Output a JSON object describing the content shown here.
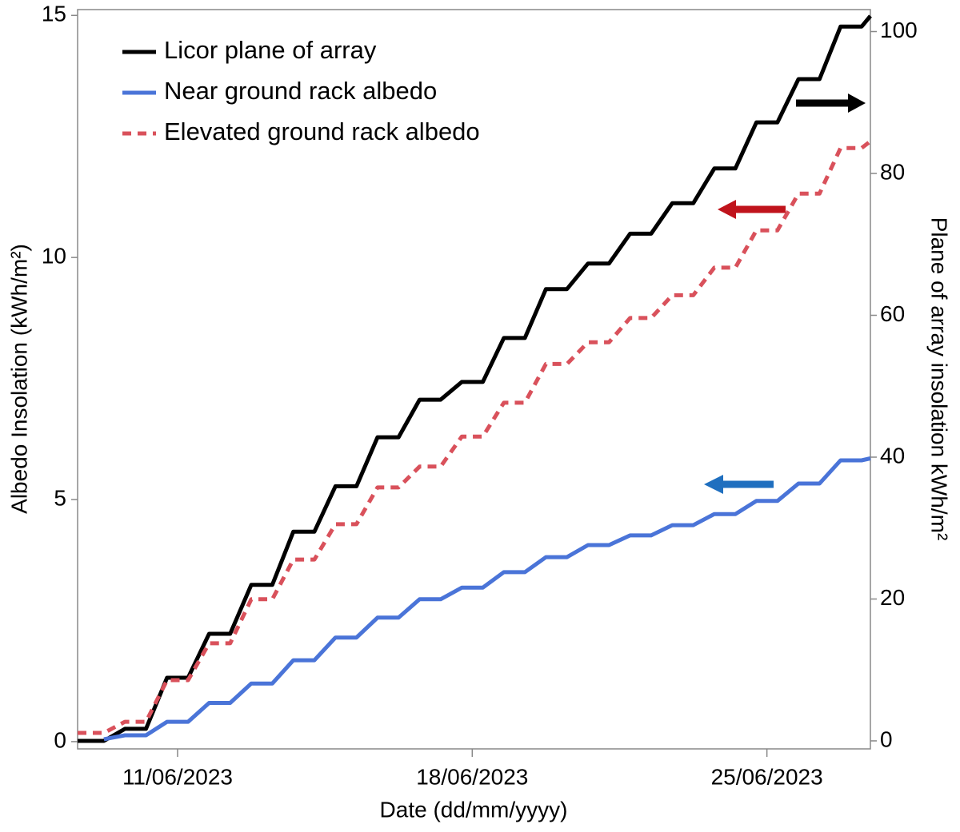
{
  "chart_data": {
    "type": "line",
    "x_label": "Date  (dd/mm/yyyy)",
    "y_label": "Albedo Insolation (kWh/m²)",
    "y2_label": "Plane of array insolation kWh/m²",
    "x": [
      "2023-06-08T15:00",
      "2023-06-09T06:00",
      "2023-06-09T18:00",
      "2023-06-10T06:00",
      "2023-06-10T18:00",
      "2023-06-11T06:00",
      "2023-06-11T18:00",
      "2023-06-12T06:00",
      "2023-06-12T18:00",
      "2023-06-13T06:00",
      "2023-06-13T18:00",
      "2023-06-14T06:00",
      "2023-06-14T18:00",
      "2023-06-15T06:00",
      "2023-06-15T18:00",
      "2023-06-16T06:00",
      "2023-06-16T18:00",
      "2023-06-17T06:00",
      "2023-06-17T18:00",
      "2023-06-18T06:00",
      "2023-06-18T18:00",
      "2023-06-19T06:00",
      "2023-06-19T18:00",
      "2023-06-20T06:00",
      "2023-06-20T18:00",
      "2023-06-21T06:00",
      "2023-06-21T18:00",
      "2023-06-22T06:00",
      "2023-06-22T18:00",
      "2023-06-23T06:00",
      "2023-06-23T18:00",
      "2023-06-24T06:00",
      "2023-06-24T18:00",
      "2023-06-25T06:00",
      "2023-06-25T18:00",
      "2023-06-26T06:00",
      "2023-06-26T18:00",
      "2023-06-27T06:00",
      "2023-06-27T11:00"
    ],
    "series": [
      {
        "name": "Licor plane of array",
        "color": "#000000",
        "line_style": "solid",
        "axis": "y2",
        "values": [
          0,
          0,
          1.7,
          1.7,
          8.9,
          8.9,
          15.1,
          15.1,
          22.0,
          22.0,
          29.5,
          29.5,
          35.9,
          35.9,
          42.8,
          42.8,
          48.1,
          48.1,
          50.6,
          50.6,
          56.8,
          56.8,
          63.7,
          63.7,
          67.3,
          67.3,
          71.5,
          71.5,
          75.8,
          75.8,
          80.7,
          80.7,
          87.2,
          87.2,
          93.3,
          93.3,
          100.7,
          100.7,
          102.2
        ]
      },
      {
        "name": "Near ground rack albedo",
        "color": "#4a74d8",
        "line_style": "solid",
        "values": [
          null,
          0.05,
          0.13,
          0.13,
          0.41,
          0.41,
          0.8,
          0.8,
          1.2,
          1.2,
          1.68,
          1.68,
          2.15,
          2.15,
          2.56,
          2.56,
          2.94,
          2.94,
          3.18,
          3.18,
          3.5,
          3.5,
          3.81,
          3.81,
          4.06,
          4.06,
          4.26,
          4.26,
          4.47,
          4.47,
          4.7,
          4.7,
          4.97,
          4.97,
          5.33,
          5.33,
          5.81,
          5.81,
          5.85
        ]
      },
      {
        "name": "Elevated ground rack albedo",
        "color": "#d9515b",
        "line_style": "dashed",
        "values": [
          0.18,
          0.18,
          0.41,
          0.41,
          1.27,
          1.27,
          2.03,
          2.03,
          2.94,
          2.94,
          3.76,
          3.76,
          4.49,
          4.49,
          5.25,
          5.25,
          5.68,
          5.68,
          6.3,
          6.3,
          7.0,
          7.0,
          7.8,
          7.8,
          8.25,
          8.25,
          8.75,
          8.75,
          9.22,
          9.22,
          9.79,
          9.79,
          10.56,
          10.56,
          11.32,
          11.32,
          12.26,
          12.26,
          12.4
        ]
      }
    ],
    "xlim": [
      "2023-06-08T15:00",
      "2023-06-27T11:00"
    ],
    "xticks": [
      {
        "value": "2023-06-11",
        "label": "11/06/2023"
      },
      {
        "value": "2023-06-18",
        "label": "18/06/2023"
      },
      {
        "value": "2023-06-25",
        "label": "25/06/2023"
      }
    ],
    "ylim": [
      -0.15,
      15.12
    ],
    "yticks": [
      0,
      5,
      10,
      15
    ],
    "y2lim": [
      -1.13,
      103.1
    ],
    "y2ticks": [
      0,
      20,
      40,
      60,
      80,
      100
    ],
    "legend": "upper left"
  }
}
